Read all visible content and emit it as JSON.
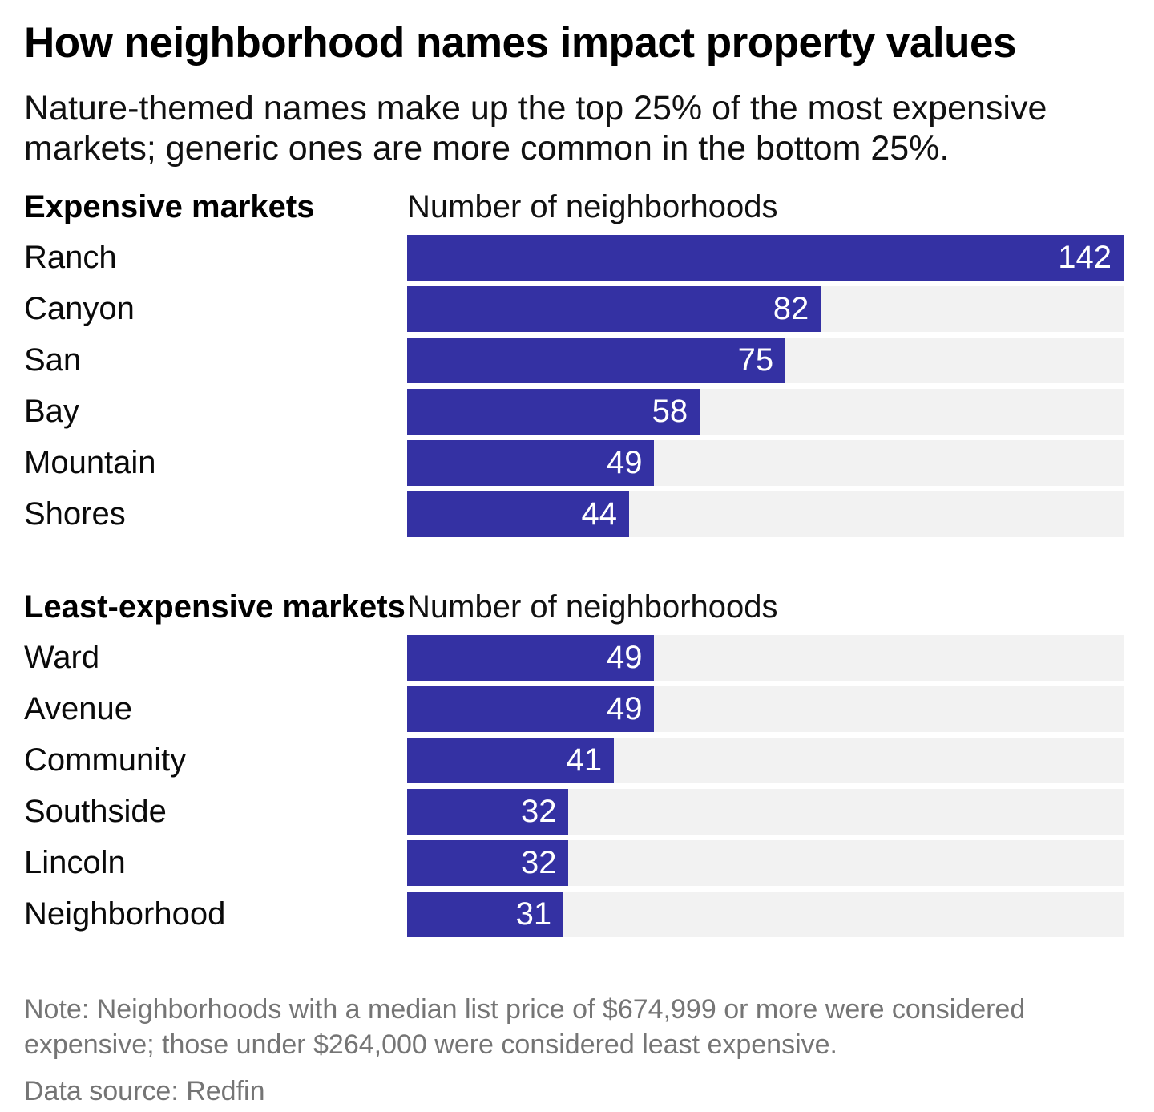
{
  "title": "How neighborhood names impact property values",
  "subtitle": "Nature-themed names make up the top 25% of the most expensive markets; generic ones are more common in the bottom 25%.",
  "note": "Note: Neighborhoods with a median list price of $674,999 or more were considered expensive; those under $264,000 were considered least expensive.",
  "data_source": "Data source: Redfin",
  "colors": {
    "bar": "#3431a3",
    "track": "#f2f2f2",
    "value_label": "#ffffff",
    "muted_text": "#757575",
    "text": "#000000"
  },
  "chart_data": {
    "type": "bar",
    "orientation": "horizontal",
    "value_max": 142,
    "grid": false,
    "legend": false,
    "value_labels": "inside-end",
    "sections": [
      {
        "title": "Expensive markets",
        "col_header": "Number of neighborhoods",
        "rows": [
          {
            "label": "Ranch",
            "value": 142
          },
          {
            "label": "Canyon",
            "value": 82
          },
          {
            "label": "San",
            "value": 75
          },
          {
            "label": "Bay",
            "value": 58
          },
          {
            "label": "Mountain",
            "value": 49
          },
          {
            "label": "Shores",
            "value": 44
          }
        ]
      },
      {
        "title": "Least-expensive markets",
        "col_header": "Number of neighborhoods",
        "rows": [
          {
            "label": "Ward",
            "value": 49
          },
          {
            "label": "Avenue",
            "value": 49
          },
          {
            "label": "Community",
            "value": 41
          },
          {
            "label": "Southside",
            "value": 32
          },
          {
            "label": "Lincoln",
            "value": 32
          },
          {
            "label": "Neighborhood",
            "value": 31
          }
        ]
      }
    ]
  }
}
